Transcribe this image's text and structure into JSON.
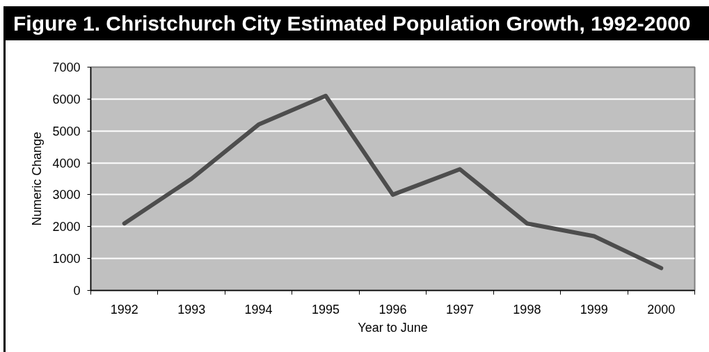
{
  "chart_data": {
    "type": "line",
    "title": "Figure 1. Christchurch City Estimated Population Growth, 1992-2000",
    "xlabel": "Year to June",
    "ylabel": "Numeric Change",
    "categories": [
      "1992",
      "1993",
      "1994",
      "1995",
      "1996",
      "1997",
      "1998",
      "1999",
      "2000"
    ],
    "series": [
      {
        "color": "#4d4d4d",
        "values": [
          2100,
          3500,
          5200,
          6100,
          3000,
          3800,
          2100,
          1700,
          700
        ]
      }
    ],
    "ylim": [
      0,
      7000
    ],
    "yticks": [
      0,
      1000,
      2000,
      3000,
      4000,
      5000,
      6000,
      7000
    ],
    "grid": "y",
    "marker": "none",
    "line_style": "solid"
  }
}
